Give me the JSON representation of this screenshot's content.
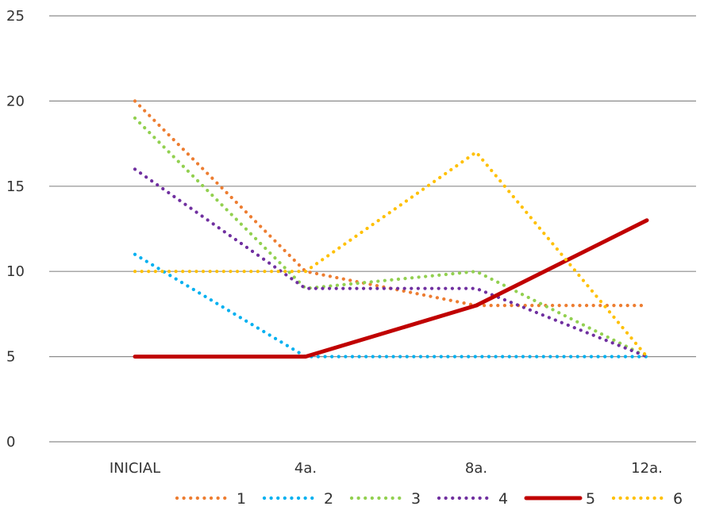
{
  "chart_data": {
    "type": "line",
    "title": "",
    "xlabel": "",
    "ylabel": "",
    "categories": [
      "INICIAL",
      "4a.",
      "8a.",
      "12a."
    ],
    "ylim": [
      0,
      25
    ],
    "yticks": [
      "0",
      "5",
      "10",
      "15",
      "20",
      "25"
    ],
    "grid": true,
    "legend_position": "bottom",
    "series": [
      {
        "name": "1",
        "values": [
          20,
          10,
          8,
          8
        ],
        "color": "#ED7D31",
        "style": "dotted"
      },
      {
        "name": "2",
        "values": [
          11,
          5,
          5,
          5
        ],
        "color": "#00B0F0",
        "style": "dotted"
      },
      {
        "name": "3",
        "values": [
          19,
          9,
          10,
          5
        ],
        "color": "#92D050",
        "style": "dotted"
      },
      {
        "name": "4",
        "values": [
          16,
          9,
          9,
          5
        ],
        "color": "#7030A0",
        "style": "dotted"
      },
      {
        "name": "5",
        "values": [
          5,
          5,
          8,
          13
        ],
        "color": "#C00000",
        "style": "solid"
      },
      {
        "name": "6",
        "values": [
          10,
          10,
          17,
          5
        ],
        "color": "#FFC000",
        "style": "dotted"
      }
    ]
  }
}
